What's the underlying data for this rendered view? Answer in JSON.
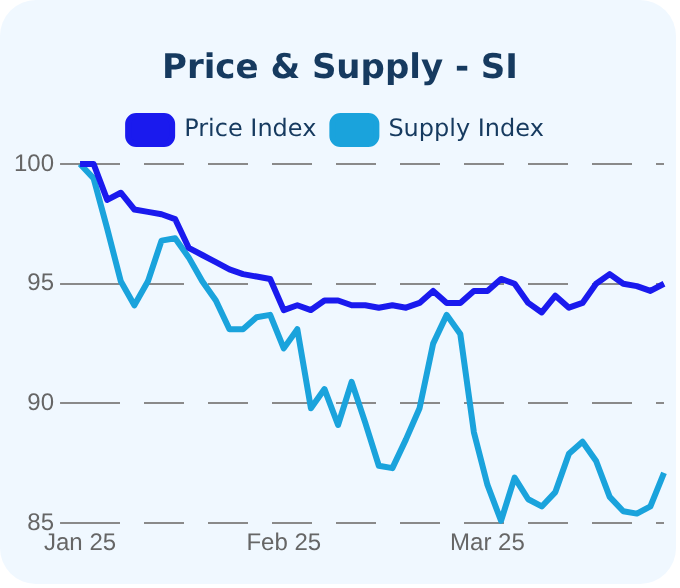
{
  "chart_data": {
    "type": "line",
    "title": "Price & Supply - SI",
    "categories": [
      "Jan 25",
      null,
      null,
      null,
      null,
      null,
      null,
      null,
      null,
      null,
      null,
      null,
      null,
      null,
      null,
      "Feb 25",
      null,
      null,
      null,
      null,
      null,
      null,
      null,
      null,
      null,
      null,
      null,
      null,
      null,
      null,
      "Mar 25",
      null,
      null,
      null,
      null,
      null,
      null,
      null,
      null,
      null,
      null,
      null,
      null,
      null
    ],
    "series": [
      {
        "name": "Price Index",
        "color": "#1a1aee",
        "values": [
          100.0,
          100.0,
          98.5,
          98.8,
          98.1,
          98.0,
          97.9,
          97.7,
          96.5,
          96.2,
          95.9,
          95.6,
          95.4,
          95.3,
          95.2,
          93.9,
          94.1,
          93.9,
          94.3,
          94.3,
          94.1,
          94.1,
          94.0,
          94.1,
          94.0,
          94.2,
          94.7,
          94.2,
          94.2,
          94.7,
          94.7,
          95.2,
          95.0,
          94.2,
          93.8,
          94.5,
          94.0,
          94.2,
          95.0,
          95.4,
          95.0,
          94.9,
          94.7,
          95.0
        ]
      },
      {
        "name": "Supply Index",
        "color": "#1aa3dc",
        "values": [
          100.0,
          99.4,
          97.3,
          95.1,
          94.1,
          95.1,
          96.8,
          96.9,
          96.1,
          95.1,
          94.3,
          93.1,
          93.1,
          93.6,
          93.7,
          92.3,
          93.1,
          89.8,
          90.6,
          89.1,
          90.9,
          89.2,
          87.4,
          87.3,
          88.5,
          89.8,
          92.5,
          93.7,
          92.9,
          88.8,
          86.6,
          85.1,
          86.9,
          86.0,
          85.7,
          86.3,
          87.9,
          88.4,
          87.6,
          86.1,
          85.5,
          85.4,
          85.7,
          87.1
        ]
      }
    ],
    "ylim": [
      85,
      100
    ],
    "yticks": [
      85,
      90,
      95,
      100
    ],
    "grid": "y",
    "legend": "top",
    "marker": "none",
    "line_style": "solid"
  }
}
